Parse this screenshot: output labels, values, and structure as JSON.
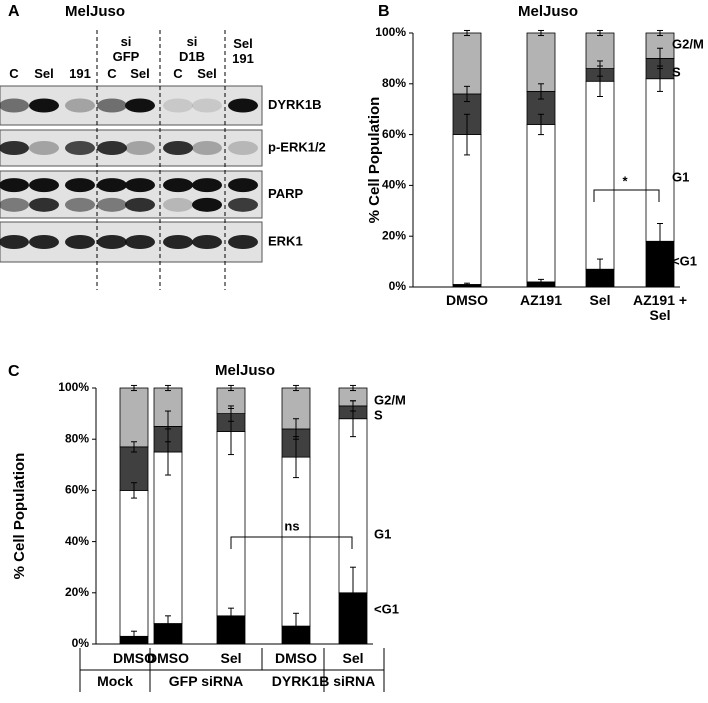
{
  "panel_labels": [
    "A",
    "B",
    "C"
  ],
  "blot": {
    "title": "MelJuso",
    "lanes": [
      "C",
      "Sel",
      "191",
      "C",
      "Sel",
      "C",
      "Sel",
      "Sel 191"
    ],
    "group_headers": [
      "si GFP",
      "si D1B"
    ],
    "rows": [
      "DYRK1B",
      "p-ERK1/2",
      "PARP",
      "ERK1"
    ]
  },
  "chart_data": [
    {
      "type": "stacked_bar",
      "title": "MelJuso",
      "y_label": "% Cell Population",
      "categories": [
        "DMSO",
        "AZ191",
        "Sel",
        "AZ191 + Sel"
      ],
      "series": [
        {
          "name": "<G1",
          "color": "#000000",
          "values": [
            1,
            2,
            7,
            18
          ],
          "errors": [
            0.5,
            1,
            4,
            7
          ]
        },
        {
          "name": "G1",
          "color": "#ffffff",
          "values": [
            59,
            62,
            74,
            64
          ],
          "errors": [
            8,
            4,
            6,
            5
          ]
        },
        {
          "name": "S",
          "color": "#404040",
          "values": [
            16,
            13,
            5,
            8
          ],
          "errors": [
            3,
            3,
            3,
            4
          ]
        },
        {
          "name": "G2/M",
          "color": "#b3b3b3",
          "values": [
            24,
            23,
            14,
            10
          ],
          "errors": [
            1,
            1,
            1,
            1
          ]
        }
      ],
      "ylim": [
        0,
        100
      ],
      "yticks": [
        {
          "value": 0,
          "label": "0%"
        },
        {
          "value": 20,
          "label": "20%"
        },
        {
          "value": 40,
          "label": "40%"
        },
        {
          "value": 60,
          "label": "60%"
        },
        {
          "value": 80,
          "label": "80%"
        },
        {
          "value": 100,
          "label": "100%"
        }
      ],
      "annotations": [
        "*"
      ]
    },
    {
      "type": "stacked_bar",
      "title": "MelJuso",
      "y_label": "% Cell Population",
      "categories": [
        "DMSO",
        "DMSO",
        "Sel",
        "DMSO",
        "Sel"
      ],
      "group_labels": [
        "Mock",
        "GFP siRNA",
        "DYRK1B siRNA"
      ],
      "series": [
        {
          "name": "<G1",
          "color": "#000000",
          "values": [
            3,
            8,
            11,
            7,
            20
          ],
          "errors": [
            2,
            3,
            3,
            5,
            10
          ]
        },
        {
          "name": "G1",
          "color": "#ffffff",
          "values": [
            57,
            67,
            72,
            66,
            68
          ],
          "errors": [
            3,
            9,
            9,
            8,
            7
          ]
        },
        {
          "name": "S",
          "color": "#404040",
          "values": [
            17,
            10,
            7,
            11,
            5
          ],
          "errors": [
            2,
            6,
            3,
            4,
            2
          ]
        },
        {
          "name": "G2/M",
          "color": "#b3b3b3",
          "values": [
            23,
            15,
            10,
            16,
            7
          ],
          "errors": [
            1,
            1,
            1,
            1,
            1
          ]
        }
      ],
      "ylim": [
        0,
        100
      ],
      "yticks": [
        {
          "value": 0,
          "label": "0%"
        },
        {
          "value": 20,
          "label": "20%"
        },
        {
          "value": 40,
          "label": "40%"
        },
        {
          "value": 60,
          "label": "60%"
        },
        {
          "value": 80,
          "label": "80%"
        },
        {
          "value": 100,
          "label": "100%"
        }
      ],
      "annotations": [
        "ns"
      ]
    }
  ]
}
